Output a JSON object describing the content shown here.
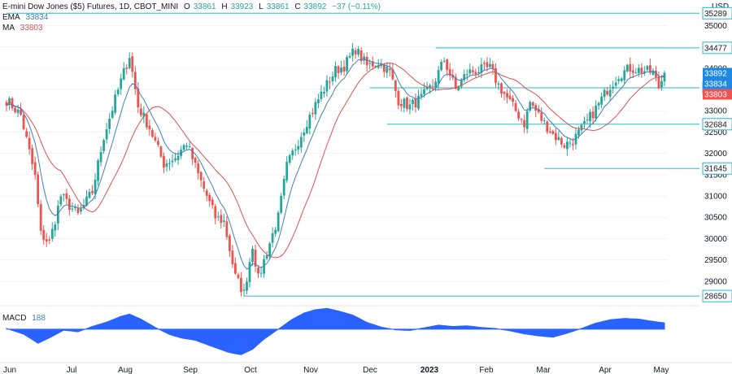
{
  "header": {
    "symbol": "E-mini Dow Jones ($5) Futures, 1D, CBOT_MINI",
    "o_label": "O",
    "o_value": "33861",
    "h_label": "H",
    "h_value": "33923",
    "l_label": "L",
    "l_value": "33861",
    "c_label": "C",
    "c_value": "33892",
    "change": "−37 (−0.11%)",
    "value_color": "#26a69a"
  },
  "legend": {
    "ema_label": "EMA",
    "ema_value": "33834",
    "ema_color": "#3f7fbf",
    "ma_label": "MA",
    "ma_value": "33803",
    "ma_color": "#d9534f"
  },
  "colors": {
    "up": "#26a69a",
    "down": "#ef5350",
    "level_line": "#22bcc9",
    "macd_fill": "#2962ff",
    "price_badge": "#1e88e5"
  },
  "chart_data": {
    "type": "candlestick",
    "currency": "USD",
    "ylim": [
      28500,
      35600
    ],
    "yticks": [
      29000,
      29500,
      30000,
      30500,
      31000,
      31500,
      32000,
      32500,
      33000,
      33500,
      34000,
      34500,
      35000
    ],
    "x_labels": [
      "Jun",
      "Jul",
      "Aug",
      "Sep",
      "Oct",
      "Nov",
      "Dec",
      "2023",
      "Feb",
      "Mar",
      "Apr",
      "May"
    ],
    "bars": 231,
    "anchors": [
      [
        0,
        33250
      ],
      [
        5,
        32900
      ],
      [
        10,
        31450
      ],
      [
        12,
        30100
      ],
      [
        15,
        29900
      ],
      [
        19,
        31000
      ],
      [
        25,
        30550
      ],
      [
        30,
        31100
      ],
      [
        34,
        32400
      ],
      [
        40,
        33700
      ],
      [
        43,
        34300
      ],
      [
        46,
        33100
      ],
      [
        50,
        32600
      ],
      [
        55,
        31750
      ],
      [
        59,
        31900
      ],
      [
        63,
        32250
      ],
      [
        67,
        31500
      ],
      [
        73,
        30500
      ],
      [
        76,
        30400
      ],
      [
        80,
        29100
      ],
      [
        83,
        28720
      ],
      [
        86,
        29850
      ],
      [
        88,
        29050
      ],
      [
        91,
        29700
      ],
      [
        95,
        30500
      ],
      [
        98,
        31700
      ],
      [
        102,
        32300
      ],
      [
        105,
        32750
      ],
      [
        110,
        33400
      ],
      [
        115,
        33950
      ],
      [
        118,
        34050
      ],
      [
        122,
        34450
      ],
      [
        126,
        34050
      ],
      [
        130,
        34150
      ],
      [
        134,
        33900
      ],
      [
        137,
        33250
      ],
      [
        141,
        33100
      ],
      [
        145,
        33300
      ],
      [
        149,
        33600
      ],
      [
        153,
        34200
      ],
      [
        157,
        33500
      ],
      [
        161,
        33900
      ],
      [
        165,
        33950
      ],
      [
        169,
        34000
      ],
      [
        172,
        33600
      ],
      [
        177,
        33100
      ],
      [
        181,
        32700
      ],
      [
        183,
        33200
      ],
      [
        187,
        32800
      ],
      [
        191,
        32450
      ],
      [
        195,
        32200
      ],
      [
        198,
        32300
      ],
      [
        202,
        32650
      ],
      [
        206,
        33050
      ],
      [
        210,
        33500
      ],
      [
        214,
        33850
      ],
      [
        218,
        34000
      ],
      [
        222,
        33950
      ],
      [
        226,
        33900
      ],
      [
        228,
        33550
      ],
      [
        230,
        33892
      ]
    ],
    "series": [
      {
        "name": "EMA",
        "value": 33834
      },
      {
        "name": "MA",
        "value": 33803
      }
    ],
    "levels": [
      {
        "value": 35289,
        "label": "35289",
        "from_bar": 0
      },
      {
        "value": 34477,
        "label": "34477",
        "from_bar": 150
      },
      {
        "value": 33538,
        "label": "33538",
        "from_bar": 127
      },
      {
        "value": 32684,
        "label": "32684",
        "from_bar": 133
      },
      {
        "value": 31645,
        "label": "31645",
        "from_bar": 188
      },
      {
        "value": 28650,
        "label": "28650",
        "from_bar": 83
      }
    ],
    "price_badges": [
      {
        "label": "33892",
        "value": 33892,
        "color": "#1e88e5"
      },
      {
        "label": "33834",
        "value": 33834,
        "color": "#1e88e5"
      },
      {
        "label": "33803",
        "value": 33803,
        "color": "#ef5350"
      }
    ],
    "macd": {
      "label": "MACD",
      "value": 188,
      "value_label": "188",
      "axis_label": "0",
      "ylim": [
        -900,
        650
      ],
      "anchors": [
        [
          0,
          20
        ],
        [
          6,
          -150
        ],
        [
          11,
          -420
        ],
        [
          15,
          -260
        ],
        [
          20,
          -30
        ],
        [
          25,
          -80
        ],
        [
          30,
          80
        ],
        [
          35,
          210
        ],
        [
          40,
          380
        ],
        [
          43,
          450
        ],
        [
          47,
          300
        ],
        [
          52,
          50
        ],
        [
          57,
          -160
        ],
        [
          61,
          -260
        ],
        [
          66,
          -330
        ],
        [
          72,
          -520
        ],
        [
          78,
          -700
        ],
        [
          82,
          -760
        ],
        [
          86,
          -600
        ],
        [
          90,
          -300
        ],
        [
          95,
          0
        ],
        [
          100,
          300
        ],
        [
          104,
          480
        ],
        [
          108,
          580
        ],
        [
          112,
          620
        ],
        [
          116,
          540
        ],
        [
          121,
          420
        ],
        [
          126,
          200
        ],
        [
          131,
          60
        ],
        [
          136,
          -20
        ],
        [
          141,
          -40
        ],
        [
          146,
          40
        ],
        [
          151,
          120
        ],
        [
          156,
          80
        ],
        [
          161,
          100
        ],
        [
          166,
          50
        ],
        [
          171,
          20
        ],
        [
          176,
          -50
        ],
        [
          181,
          -140
        ],
        [
          186,
          -200
        ],
        [
          191,
          -240
        ],
        [
          196,
          -120
        ],
        [
          201,
          20
        ],
        [
          206,
          180
        ],
        [
          211,
          280
        ],
        [
          216,
          320
        ],
        [
          221,
          300
        ],
        [
          226,
          230
        ],
        [
          230,
          188
        ]
      ]
    }
  }
}
